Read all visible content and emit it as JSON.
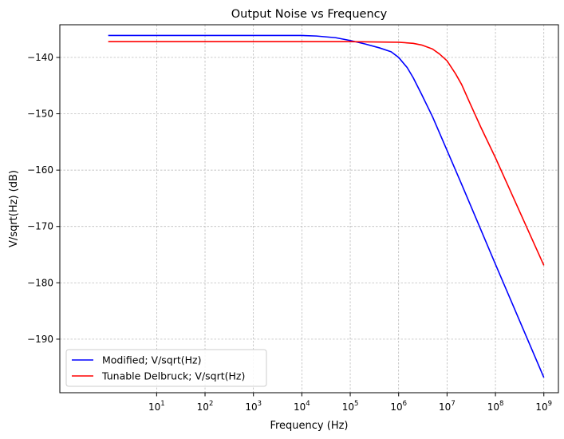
{
  "chart_data": {
    "type": "line",
    "title": "Output Noise vs Frequency",
    "xlabel": "Frequency (Hz)",
    "ylabel": "V/sqrt(Hz) (dB)",
    "xscale": "log",
    "xlim": [
      0.1,
      2000000000
    ],
    "ylim": [
      -199.5,
      -134.2
    ],
    "xticks": [
      {
        "value": 10,
        "base": "10",
        "exp": "1"
      },
      {
        "value": 100,
        "base": "10",
        "exp": "2"
      },
      {
        "value": 1000,
        "base": "10",
        "exp": "3"
      },
      {
        "value": 10000,
        "base": "10",
        "exp": "4"
      },
      {
        "value": 100000,
        "base": "10",
        "exp": "5"
      },
      {
        "value": 1000000,
        "base": "10",
        "exp": "6"
      },
      {
        "value": 10000000,
        "base": "10",
        "exp": "7"
      },
      {
        "value": 100000000,
        "base": "10",
        "exp": "8"
      },
      {
        "value": 1000000000,
        "base": "10",
        "exp": "9"
      }
    ],
    "yticks": [
      {
        "value": -140,
        "label": "−140"
      },
      {
        "value": -150,
        "label": "−150"
      },
      {
        "value": -160,
        "label": "−160"
      },
      {
        "value": -170,
        "label": "−170"
      },
      {
        "value": -180,
        "label": "−180"
      },
      {
        "value": -190,
        "label": "−190"
      }
    ],
    "grid": true,
    "legend_position": "lower-left",
    "series": [
      {
        "name": "Modified; V/sqrt(Hz)",
        "color": "#0000ff",
        "x": [
          1,
          10,
          100,
          1000,
          10000,
          20000,
          50000,
          100000,
          200000,
          400000,
          700000,
          1000000,
          1500000,
          2000000,
          3000000,
          5000000,
          10000000,
          20000000,
          100000000,
          1000000000
        ],
        "y": [
          -136.1,
          -136.1,
          -136.1,
          -136.1,
          -136.1,
          -136.2,
          -136.5,
          -137.0,
          -137.6,
          -138.3,
          -139.0,
          -140.0,
          -141.8,
          -143.6,
          -146.6,
          -150.5,
          -156.5,
          -162.5,
          -176.7,
          -196.8
        ]
      },
      {
        "name": "Tunable Delbruck; V/sqrt(Hz)",
        "color": "#ff0000",
        "x": [
          1,
          10,
          100,
          1000,
          10000,
          100000,
          1000000,
          2000000,
          3000000,
          5000000,
          7000000,
          10000000,
          15000000,
          20000000,
          30000000,
          50000000,
          100000000,
          1000000000
        ],
        "y": [
          -137.2,
          -137.2,
          -137.2,
          -137.2,
          -137.2,
          -137.2,
          -137.3,
          -137.5,
          -137.8,
          -138.5,
          -139.4,
          -140.6,
          -142.9,
          -144.8,
          -148.2,
          -152.4,
          -157.8,
          -176.9
        ]
      }
    ]
  }
}
